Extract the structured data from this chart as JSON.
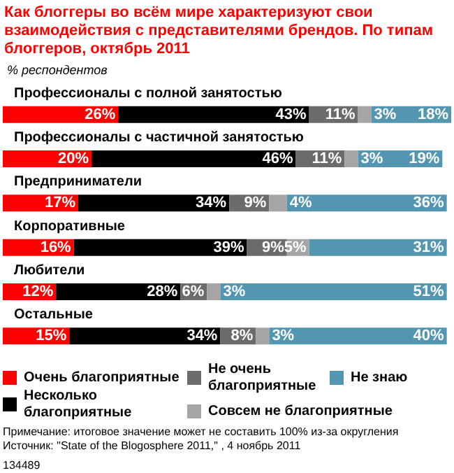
{
  "chart_data": {
    "type": "bar",
    "orientation": "horizontal",
    "stacked": true,
    "title": "Как блоггеры во всём мире характеризуют свои взаимодействия с представителями брендов. По типам блоггеров, октябрь 2011",
    "subtitle": "% респондентов",
    "categories": [
      "Профессионалы с полной занятостью",
      "Профессионалы с частичной занятостью",
      "Предприниматели",
      "Корпоративные",
      "Любители",
      "Остальные"
    ],
    "series": [
      {
        "name": "Очень благоприятные",
        "color": "#ff0000",
        "values": [
          26,
          20,
          17,
          16,
          12,
          15
        ],
        "value_labels": [
          "26%",
          "20%",
          "17%",
          "16%",
          "12%",
          "15%"
        ]
      },
      {
        "name": "Несколько благоприятные",
        "color": "#000000",
        "values": [
          43,
          46,
          34,
          39,
          28,
          34
        ],
        "value_labels": [
          "43%",
          "46%",
          "34%",
          "39%",
          "28%",
          "34%"
        ]
      },
      {
        "name": "Не очень благоприятные",
        "color": "#6b6b6b",
        "values": [
          11,
          11,
          9,
          9,
          6,
          8
        ],
        "value_labels": [
          "11%",
          "11%",
          "9%",
          "9%",
          "6%",
          "8%"
        ]
      },
      {
        "name": "Совсем не благоприятные",
        "color": "#a5a5a5",
        "values": [
          3,
          3,
          4,
          5,
          3,
          3
        ],
        "value_labels": [
          "3%",
          "3%",
          "4%",
          "5%",
          "3%",
          "3%"
        ]
      },
      {
        "name": "Не знаю",
        "color": "#5296b1",
        "values": [
          18,
          19,
          36,
          31,
          51,
          40
        ],
        "value_labels": [
          "18%",
          "19%",
          "36%",
          "31%",
          "51%",
          "40%"
        ]
      }
    ],
    "xlim": [
      0,
      101
    ],
    "tick_labels": "y",
    "legend": "bottom",
    "annotations": [
      "Примечание: итоговое значение может не составить 100% из-за округления",
      "Источник: \"State of the Blogosphere 2011,\" , 4 ноябрь 2011",
      "134489"
    ]
  }
}
